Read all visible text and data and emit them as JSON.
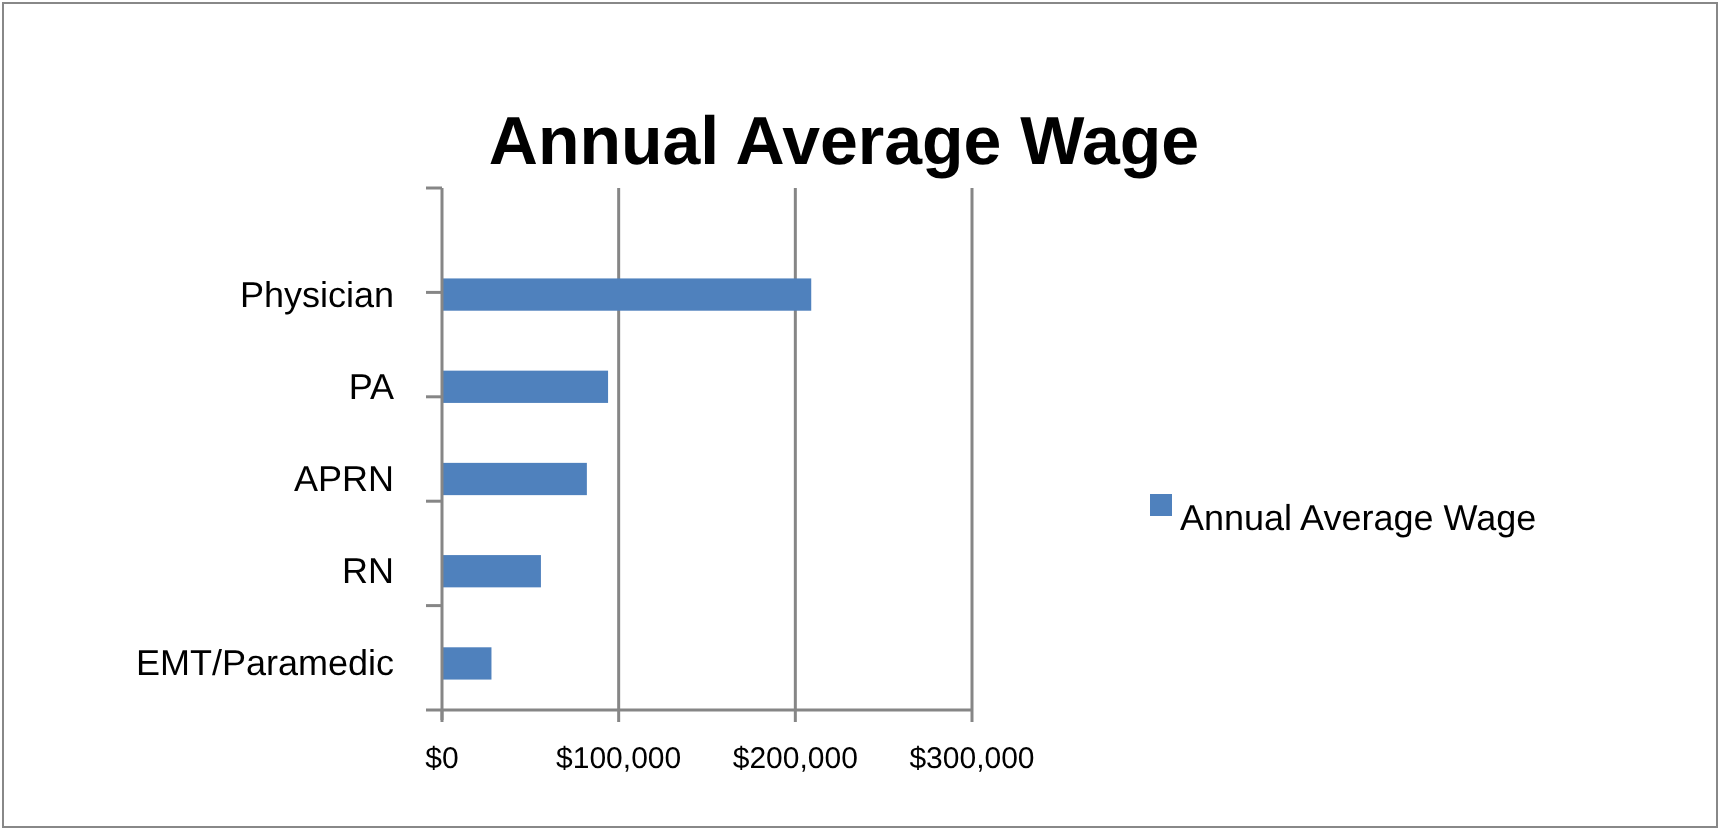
{
  "chart_data": {
    "type": "bar",
    "orientation": "horizontal",
    "title": "Annual Average Wage",
    "categories": [
      "Physician",
      "PA",
      "APRN",
      "RN",
      "EMT/Paramedic"
    ],
    "series": [
      {
        "name": "Annual Average Wage",
        "color": "#4f81bd",
        "values": [
          209000,
          94000,
          82000,
          56000,
          28000
        ]
      }
    ],
    "xlim": [
      0,
      300000
    ],
    "xticks": [
      {
        "value": 0,
        "label": "$0"
      },
      {
        "value": 100000,
        "label": "$100,000"
      },
      {
        "value": 200000,
        "label": "$200,000"
      },
      {
        "value": 300000,
        "label": "$300,000"
      }
    ],
    "grid": "x",
    "legend": "right"
  }
}
